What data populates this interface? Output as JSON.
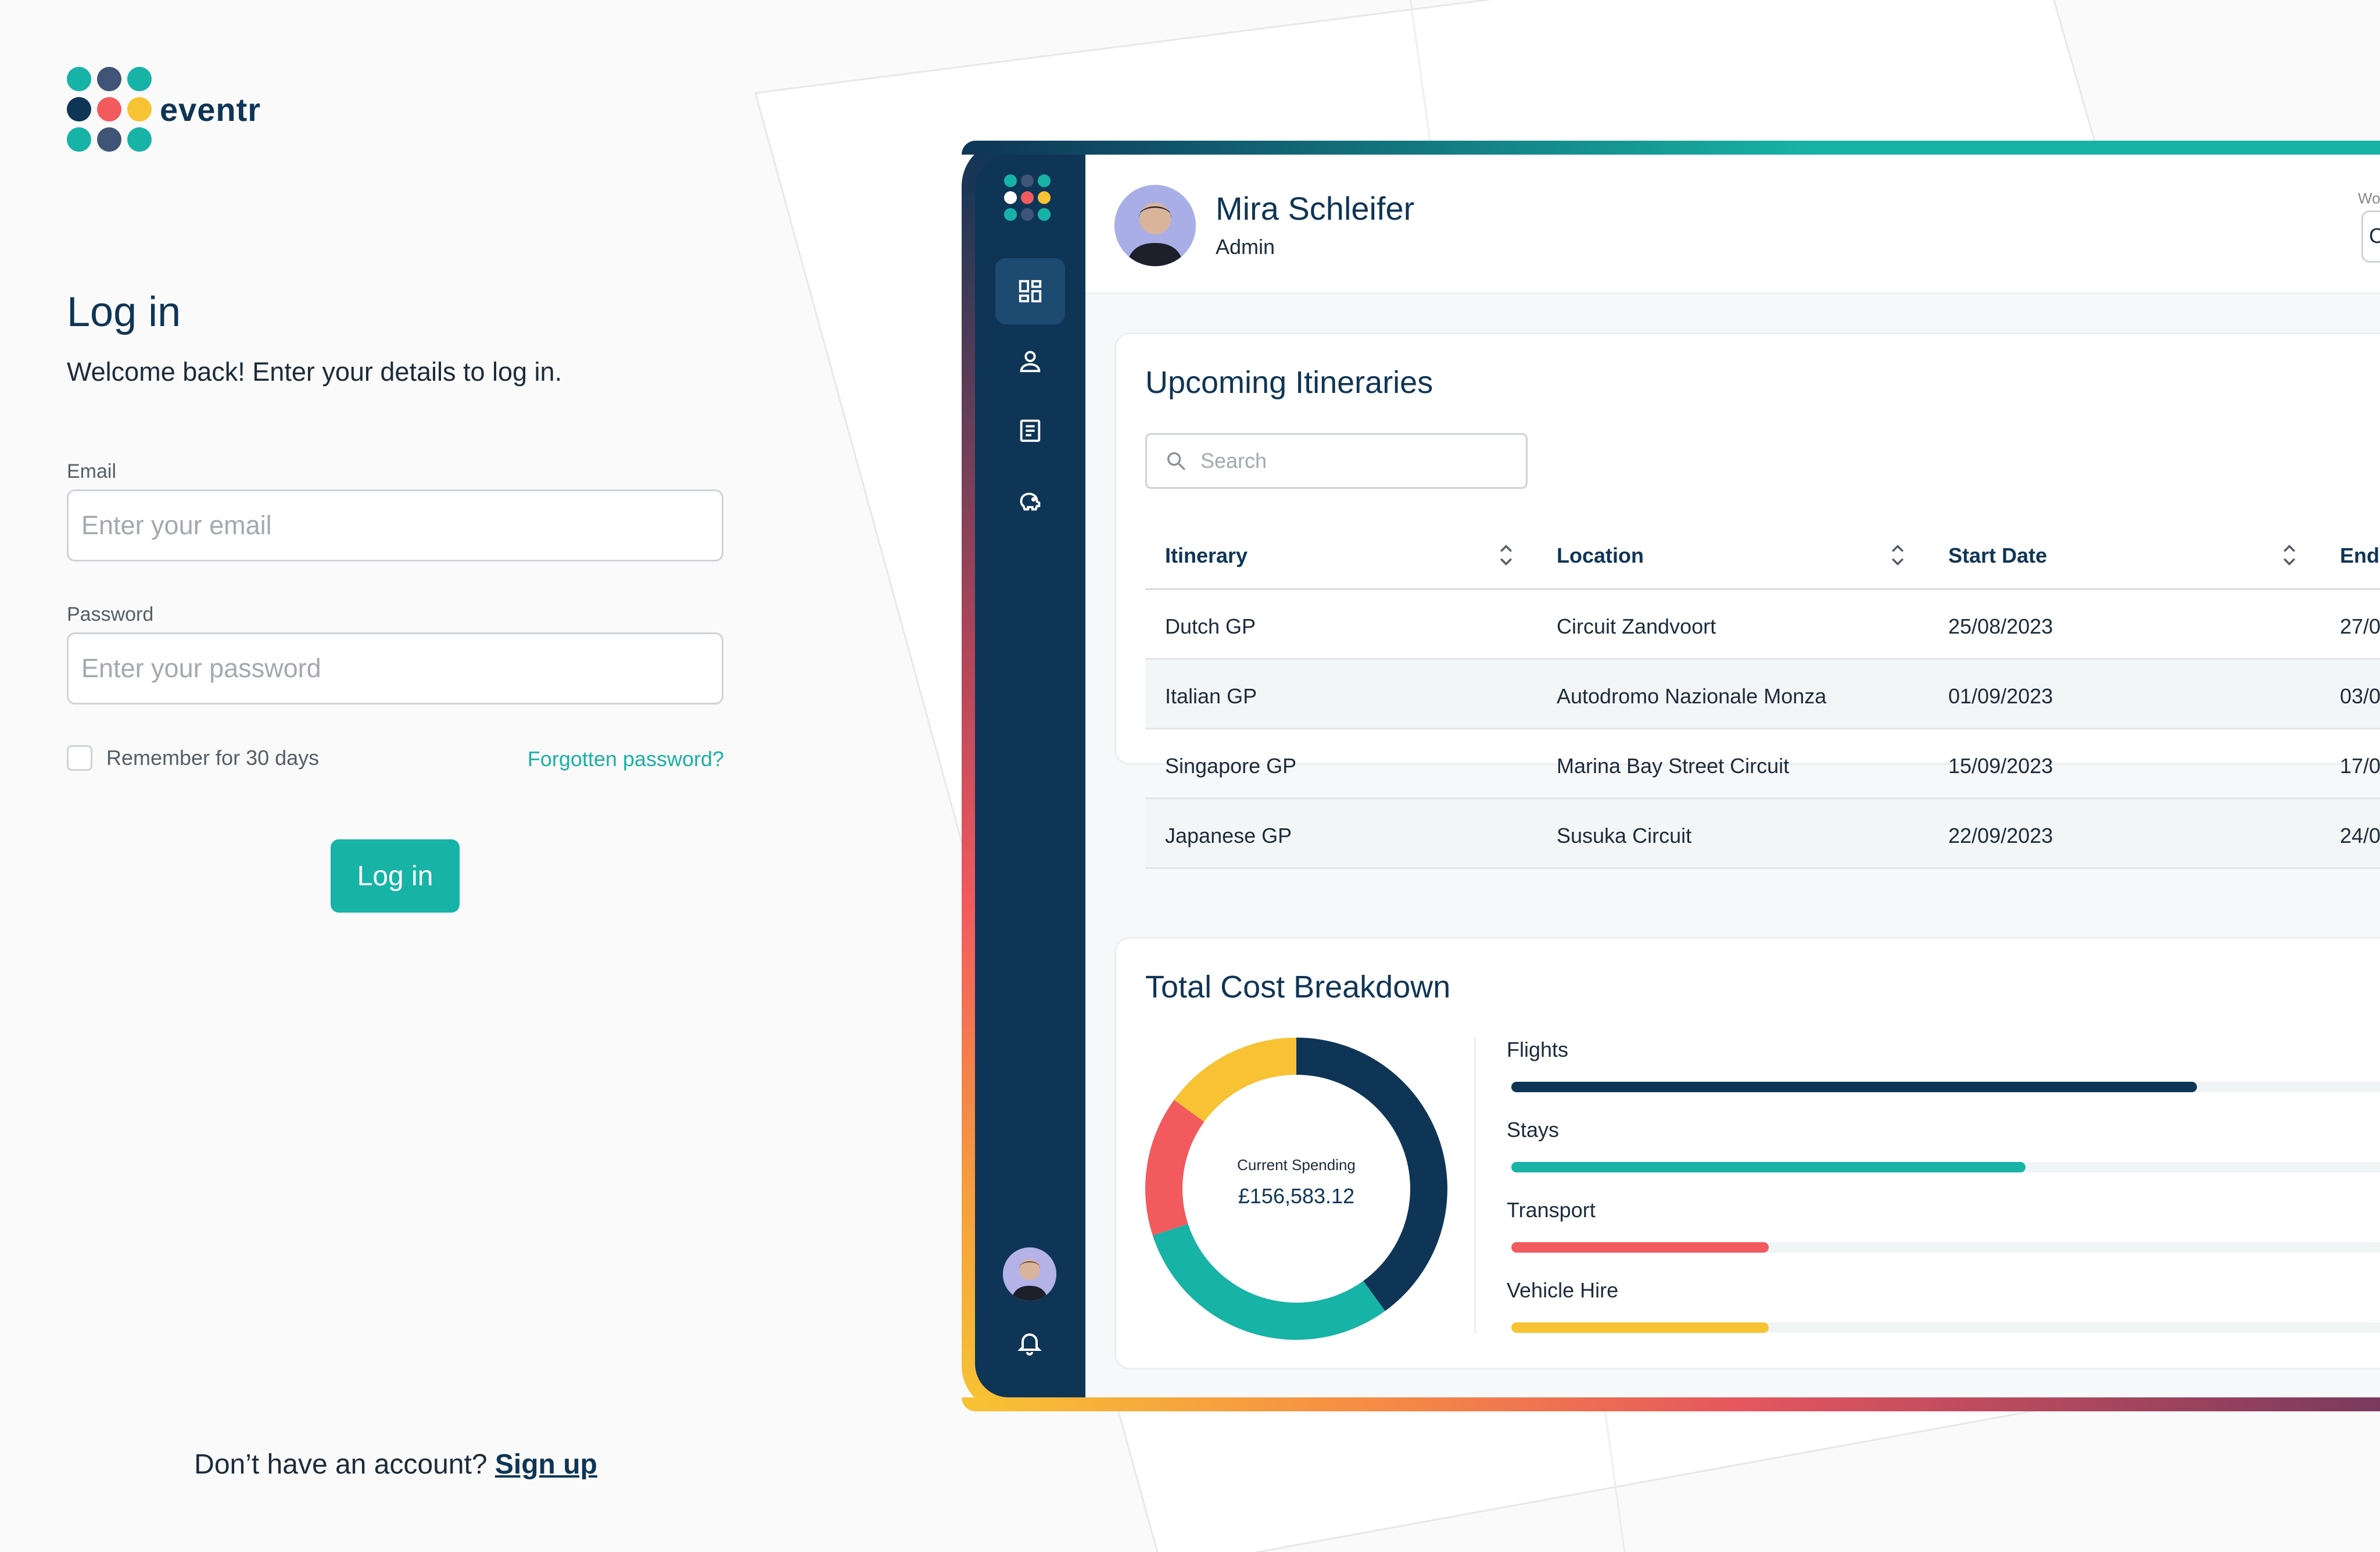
{
  "brand": {
    "name": "eventr",
    "dot_colors": [
      "#17b3a6",
      "#3f5476",
      "#17b3a6",
      "#0f3556",
      "#f25a5e",
      "#f7c334",
      "#17b3a6",
      "#3f5476",
      "#17b3a6"
    ]
  },
  "login": {
    "title": "Log in",
    "subtitle": "Welcome back! Enter your details to log in.",
    "email_label": "Email",
    "email_placeholder": "Enter your email",
    "password_label": "Password",
    "password_placeholder": "Enter your password",
    "remember_label": "Remember for 30 days",
    "forgot_label": "Forgotten password?",
    "submit_label": "Log in",
    "signup_prompt": "Don’t have an account?",
    "signup_link": "Sign up"
  },
  "dashboard": {
    "sidebar": {
      "logo_colors": [
        "#17b3a6",
        "#3f5476",
        "#17b3a6",
        "#ffffff",
        "#f25a5e",
        "#f7c334",
        "#17b3a6",
        "#3f5476",
        "#17b3a6"
      ],
      "nav": [
        {
          "icon": "dashboard-icon",
          "active": true
        },
        {
          "icon": "user-icon",
          "active": false
        },
        {
          "icon": "document-icon",
          "active": false
        },
        {
          "icon": "piggy-bank-icon",
          "active": false
        }
      ]
    },
    "user": {
      "name": "Mira Schleifer",
      "role": "Admin",
      "top_label": "Wo",
      "top_select_value": "C"
    },
    "itineraries": {
      "title": "Upcoming Itineraries",
      "search_placeholder": "Search",
      "columns": [
        "Itinerary",
        "Location",
        "Start Date",
        "End"
      ],
      "rows": [
        [
          "Dutch GP",
          "Circuit Zandvoort",
          "25/08/2023",
          "27/0"
        ],
        [
          "Italian GP",
          "Autodromo Nazionale Monza",
          "01/09/2023",
          "03/0"
        ],
        [
          "Singapore GP",
          "Marina Bay Street Circuit",
          "15/09/2023",
          "17/0"
        ],
        [
          "Japanese GP",
          "Susuka Circuit",
          "22/09/2023",
          "24/0"
        ]
      ]
    },
    "cost": {
      "title": "Total Cost Breakdown",
      "center_label": "Current Spending",
      "center_value": "£156,583.12",
      "categories": [
        {
          "label": "Flights",
          "color": "#0f3556",
          "fraction": 0.4
        },
        {
          "label": "Stays",
          "color": "#17b3a6",
          "fraction": 0.3
        },
        {
          "label": "Transport",
          "color": "#f25a5e",
          "fraction": 0.15
        },
        {
          "label": "Vehicle Hire",
          "color": "#f7c334",
          "fraction": 0.15
        }
      ]
    }
  },
  "colors": {
    "primary": "#0f3556",
    "accent": "#17b3a6",
    "coral": "#f25a5e",
    "yellow": "#f7c334"
  }
}
